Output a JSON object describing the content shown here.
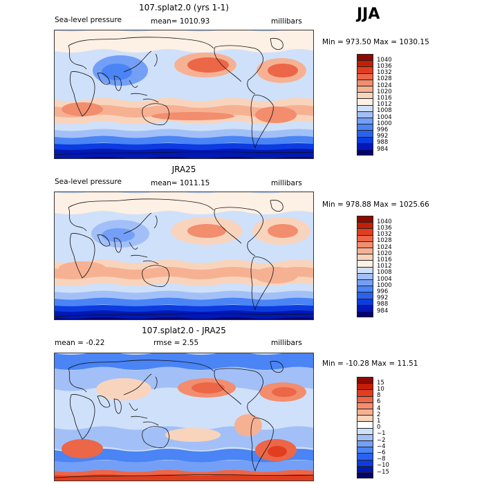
{
  "season": "JJA",
  "colors": {
    "pressure_scale": [
      "#08006d",
      "#0018b4",
      "#0c3ce0",
      "#2a62f0",
      "#4a84f5",
      "#739ff7",
      "#a2c0f7",
      "#cfe0fa",
      "#fdf0e4",
      "#f9d4bc",
      "#f6b193",
      "#f28d6e",
      "#ec6648",
      "#e03e1f",
      "#c41e06",
      "#8e0a00"
    ],
    "diff_scale": [
      "#08006d",
      "#0018b4",
      "#0c3ce0",
      "#2a62f0",
      "#4a84f5",
      "#739ff7",
      "#a2c0f7",
      "#cfe0fa",
      "#ffffff",
      "#f9d4bc",
      "#f6b193",
      "#f28d6e",
      "#ec6648",
      "#e03e1f",
      "#c41e06",
      "#8e0a00"
    ]
  },
  "chart_data": [
    {
      "type": "heatmap",
      "title": "107.splat2.0 (yrs 1-1)",
      "left_label": "Sea-level pressure",
      "center_label": "mean= 1010.93",
      "units": "millibars",
      "stats": "Min = 973.50 Max = 1030.15",
      "colorbar_levels": [
        "1040",
        "1036",
        "1032",
        "1028",
        "1024",
        "1020",
        "1016",
        "1012",
        "1008",
        "1004",
        "1000",
        "996",
        "992",
        "988",
        "984"
      ]
    },
    {
      "type": "heatmap",
      "title": "JRA25",
      "left_label": "Sea-level pressure",
      "center_label": "mean= 1011.15",
      "units": "millibars",
      "stats": "Min = 978.88 Max = 1025.66",
      "colorbar_levels": [
        "1040",
        "1036",
        "1032",
        "1028",
        "1024",
        "1020",
        "1016",
        "1012",
        "1008",
        "1004",
        "1000",
        "996",
        "992",
        "988",
        "984"
      ]
    },
    {
      "type": "heatmap",
      "title": "107.splat2.0 - JRA25",
      "left_label": "mean =  -0.22",
      "center_label": "rmse =   2.55",
      "units": "millibars",
      "stats": "Min = -10.28 Max =  11.51",
      "colorbar_levels": [
        "15",
        "10",
        "8",
        "6",
        "4",
        "2",
        "1",
        "0",
        "−1",
        "−2",
        "−4",
        "−6",
        "−8",
        "−10",
        "−15"
      ]
    }
  ]
}
